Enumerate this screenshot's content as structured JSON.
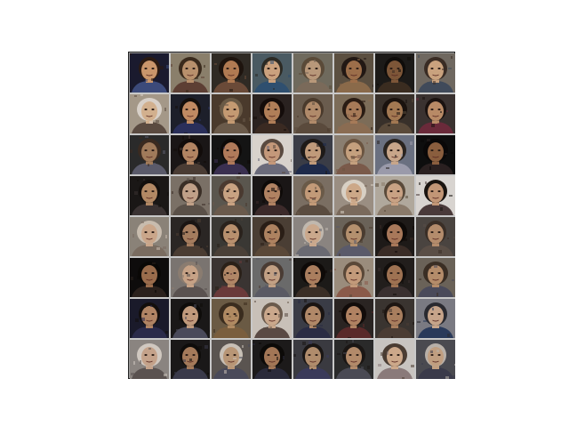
{
  "image": {
    "description_free": true,
    "grid": {
      "rows": 8,
      "cols": 8
    },
    "tiles": [
      {
        "bg": "#1a1a2e",
        "skin": "#c9956b",
        "hair": "#2b1a12",
        "cloth": "#3c4a7a"
      },
      {
        "bg": "#8a7f6b",
        "skin": "#b8906c",
        "hair": "#3a2a1c",
        "cloth": "#5d3f34"
      },
      {
        "bg": "#2f2a24",
        "skin": "#b07a52",
        "hair": "#1e140e",
        "cloth": "#6a4a38"
      },
      {
        "bg": "#4a5a62",
        "skin": "#caa17e",
        "hair": "#2c2a24",
        "cloth": "#2f4f6f"
      },
      {
        "bg": "#6f6a5d",
        "skin": "#b8987a",
        "hair": "#5a4a38",
        "cloth": "#7a6a5a"
      },
      {
        "bg": "#5b4f40",
        "skin": "#9c6e4a",
        "hair": "#221814",
        "cloth": "#8a6a4a"
      },
      {
        "bg": "#1c1a18",
        "skin": "#7d5638",
        "hair": "#0f0c0a",
        "cloth": "#3a2c20"
      },
      {
        "bg": "#6f6860",
        "skin": "#c9a27e",
        "hair": "#3a2c24",
        "cloth": "#404a5a"
      },
      {
        "bg": "#a49888",
        "skin": "#d2b08e",
        "hair": "#d8d0c8",
        "cloth": "#5a4a40"
      },
      {
        "bg": "#1d1f2a",
        "skin": "#c08a62",
        "hair": "#140f0c",
        "cloth": "#2a2f5a"
      },
      {
        "bg": "#4a3a2c",
        "skin": "#c49a72",
        "hair": "#6a5a46",
        "cloth": "#6a5a4a"
      },
      {
        "bg": "#2a2220",
        "skin": "#b07e58",
        "hair": "#140c0a",
        "cloth": "#3a2a22"
      },
      {
        "bg": "#6a5c4e",
        "skin": "#b08a6a",
        "hair": "#4a3a2c",
        "cloth": "#5a4a3c"
      },
      {
        "bg": "#7c6c58",
        "skin": "#a67a58",
        "hair": "#2a1c14",
        "cloth": "#8a6c52"
      },
      {
        "bg": "#38302a",
        "skin": "#a27852",
        "hair": "#1a120e",
        "cloth": "#5a4a3a"
      },
      {
        "bg": "#3a3230",
        "skin": "#b88a66",
        "hair": "#1a1210",
        "cloth": "#6a2a3a"
      },
      {
        "bg": "#2a2a2a",
        "skin": "#a07a5a",
        "hair": "#3a2a20",
        "cloth": "#5a5a6a"
      },
      {
        "bg": "#1a1616",
        "skin": "#b28462",
        "hair": "#120c0a",
        "cloth": "#4a3c34"
      },
      {
        "bg": "#141414",
        "skin": "#b07a5a",
        "hair": "#0e0a08",
        "cloth": "#3a3050"
      },
      {
        "bg": "#d8d2cc",
        "skin": "#c4987a",
        "hair": "#5a4a40",
        "cloth": "#6a6a7a"
      },
      {
        "bg": "#3a3c46",
        "skin": "#c09a7a",
        "hair": "#1e1a18",
        "cloth": "#1e2a4a"
      },
      {
        "bg": "#8a7e70",
        "skin": "#c4a07e",
        "hair": "#6a5440",
        "cloth": "#7a5a4a"
      },
      {
        "bg": "#6a7080",
        "skin": "#c8a68a",
        "hair": "#2a2420",
        "cloth": "#9a9aaa"
      },
      {
        "bg": "#0e0e0e",
        "skin": "#8a5e3e",
        "hair": "#0a0808",
        "cloth": "#2a2020"
      },
      {
        "bg": "#1a1716",
        "skin": "#b28864",
        "hair": "#120e0c",
        "cloth": "#3a3232"
      },
      {
        "bg": "#7a7066",
        "skin": "#c0a088",
        "hair": "#3a2e26",
        "cloth": "#5a5048"
      },
      {
        "bg": "#5a564e",
        "skin": "#c8a282",
        "hair": "#4a3a30",
        "cloth": "#6a5a4c"
      },
      {
        "bg": "#1a1616",
        "skin": "#b08262",
        "hair": "#0e0a08",
        "cloth": "#3c2a2a"
      },
      {
        "bg": "#7a6e62",
        "skin": "#c29a78",
        "hair": "#6a5a48",
        "cloth": "#5a4c40"
      },
      {
        "bg": "#9a8e82",
        "skin": "#cca888",
        "hair": "#d8d0c4",
        "cloth": "#7a6a5c"
      },
      {
        "bg": "#b0a89c",
        "skin": "#c9a284",
        "hair": "#5a4a3a",
        "cloth": "#8a7a6a"
      },
      {
        "bg": "#d8d4d0",
        "skin": "#c29676",
        "hair": "#1a1410",
        "cloth": "#4a3a3a"
      },
      {
        "bg": "#8a8278",
        "skin": "#caa68a",
        "hair": "#c8bcae",
        "cloth": "#7a6c60"
      },
      {
        "bg": "#2a2624",
        "skin": "#a47c5e",
        "hair": "#1a1412",
        "cloth": "#4a3c32"
      },
      {
        "bg": "#3a3834",
        "skin": "#b8906e",
        "hair": "#2a221c",
        "cloth": "#4a4038"
      },
      {
        "bg": "#4a3e34",
        "skin": "#ad8260",
        "hair": "#2a1e16",
        "cloth": "#5a4838"
      },
      {
        "bg": "#8a8480",
        "skin": "#caa88c",
        "hair": "#c0b8ae",
        "cloth": "#6a6a72"
      },
      {
        "bg": "#6a6258",
        "skin": "#b4906e",
        "hair": "#4a3c30",
        "cloth": "#5a5a6a"
      },
      {
        "bg": "#1e1a18",
        "skin": "#a8785a",
        "hair": "#0e0a08",
        "cloth": "#3a2c26"
      },
      {
        "bg": "#4a4440",
        "skin": "#b48c6c",
        "hair": "#3a2e26",
        "cloth": "#5a4e46"
      },
      {
        "bg": "#0e0c0c",
        "skin": "#9a6c4c",
        "hair": "#0a0806",
        "cloth": "#2a201c"
      },
      {
        "bg": "#7a7470",
        "skin": "#c6a286",
        "hair": "#8a7c70",
        "cloth": "#5a5250"
      },
      {
        "bg": "#3a3432",
        "skin": "#b08666",
        "hair": "#2a2018",
        "cloth": "#6a3a3a"
      },
      {
        "bg": "#6a6a6a",
        "skin": "#c2a084",
        "hair": "#4a3c34",
        "cloth": "#5a5a64"
      },
      {
        "bg": "#1c1a18",
        "skin": "#aa7e5e",
        "hair": "#0e0a08",
        "cloth": "#3a2e26"
      },
      {
        "bg": "#9a8c7c",
        "skin": "#c29a7a",
        "hair": "#5a4838",
        "cloth": "#8a5a4a"
      },
      {
        "bg": "#221e1c",
        "skin": "#9e7252",
        "hair": "#120e0c",
        "cloth": "#3a3030"
      },
      {
        "bg": "#6a6258",
        "skin": "#b48c6a",
        "hair": "#3a2e24",
        "cloth": "#4a4a5a"
      },
      {
        "bg": "#1a1a2a",
        "skin": "#b08464",
        "hair": "#120e0c",
        "cloth": "#2a2a4a"
      },
      {
        "bg": "#1a1818",
        "skin": "#c09a7c",
        "hair": "#0e0c0a",
        "cloth": "#4a4a5a"
      },
      {
        "bg": "#6a5a44",
        "skin": "#b08a62",
        "hair": "#3a2c1e",
        "cloth": "#7a5e3e"
      },
      {
        "bg": "#c8c0b8",
        "skin": "#caa88c",
        "hair": "#6a5a4c",
        "cloth": "#5a4a44"
      },
      {
        "bg": "#3a3c46",
        "skin": "#b08868",
        "hair": "#1a1412",
        "cloth": "#2a2c44"
      },
      {
        "bg": "#2a2422",
        "skin": "#b08262",
        "hair": "#120c0a",
        "cloth": "#5a2a2a"
      },
      {
        "bg": "#3a3430",
        "skin": "#a87e5e",
        "hair": "#1e1612",
        "cloth": "#4a3c34"
      },
      {
        "bg": "#7a7a82",
        "skin": "#c6a48a",
        "hair": "#2a2a30",
        "cloth": "#2a3a5a"
      },
      {
        "bg": "#8a8480",
        "skin": "#c4a28a",
        "hair": "#d0c8c0",
        "cloth": "#5a5250"
      },
      {
        "bg": "#1a1818",
        "skin": "#a47a5a",
        "hair": "#0e0c0a",
        "cloth": "#3a3a4a"
      },
      {
        "bg": "#5a5450",
        "skin": "#b89676",
        "hair": "#c8c0b6",
        "cloth": "#4a4a5a"
      },
      {
        "bg": "#1c1a1a",
        "skin": "#a27656",
        "hair": "#0c0a08",
        "cloth": "#2a2a3a"
      },
      {
        "bg": "#3a3a40",
        "skin": "#b08c6c",
        "hair": "#1a1614",
        "cloth": "#3a3a5a"
      },
      {
        "bg": "#2a2a2a",
        "skin": "#b28a6a",
        "hair": "#1a1614",
        "cloth": "#4a4a54"
      },
      {
        "bg": "#c8c4c0",
        "skin": "#cca88a",
        "hair": "#4a3c32",
        "cloth": "#8a7a7a"
      },
      {
        "bg": "#4a4a50",
        "skin": "#c09e80",
        "hair": "#b8b0a8",
        "cloth": "#3a3a4a"
      }
    ]
  }
}
